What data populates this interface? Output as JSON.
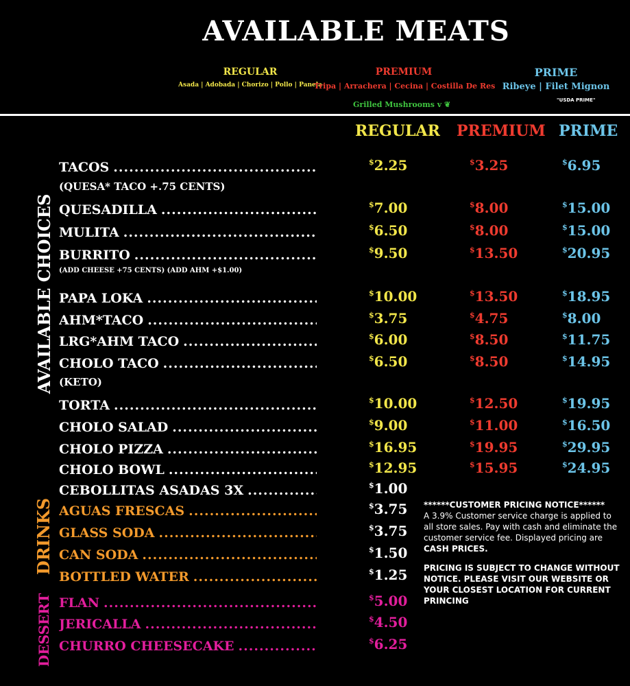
{
  "title": "AVAILABLE MEATS",
  "meats": {
    "regular": {
      "label": "REGULAR",
      "list": "Asada | Adobada | Chorizo | Pollo | Panela",
      "color": "#f2e64a"
    },
    "premium": {
      "label": "PREMIUM",
      "list": "Tripa | Arrachera | Cecina | Costilla De Res",
      "extra": "Grilled Mushrooms v",
      "color": "#ee3b2f"
    },
    "prime": {
      "label": "PRIME",
      "list": "Ribeye | Filet Mignon",
      "note": "\"USDA PRIME\"",
      "color": "#6cc4e8"
    }
  },
  "columns": {
    "regular": "REGULAR",
    "premium": "PREMIUM",
    "prime": "PRIME"
  },
  "sections": {
    "choices": "AVAILABLE CHOICES",
    "drinks": "DRINKS",
    "dessert": "DESSERT"
  },
  "items": [
    {
      "name": "TACOS",
      "regular": "2.25",
      "premium": "3.25",
      "prime": "6.95"
    },
    {
      "name": "QUESADILLA",
      "regular": "7.00",
      "premium": "8.00",
      "prime": "15.00"
    },
    {
      "name": "MULITA",
      "regular": "6.50",
      "premium": "8.00",
      "prime": "15.00"
    },
    {
      "name": "BURRITO",
      "regular": "9.50",
      "premium": "13.50",
      "prime": "20.95"
    },
    {
      "name": "PAPA LOKA",
      "regular": "10.00",
      "premium": "13.50",
      "prime": "18.95"
    },
    {
      "name": "AHM*TACO",
      "regular": "3.75",
      "premium": "4.75",
      "prime": "8.00"
    },
    {
      "name": "LRG*AHM TACO",
      "regular": "6.00",
      "premium": "8.50",
      "prime": "11.75"
    },
    {
      "name": "CHOLO TACO",
      "regular": "6.50",
      "premium": "8.50",
      "prime": "14.95"
    },
    {
      "name": "TORTA",
      "regular": "10.00",
      "premium": "12.50",
      "prime": "19.95"
    },
    {
      "name": "CHOLO SALAD",
      "regular": "9.00",
      "premium": "11.00",
      "prime": "16.50"
    },
    {
      "name": "CHOLO PIZZA",
      "regular": "16.95",
      "premium": "19.95",
      "prime": "29.95"
    },
    {
      "name": "CHOLO BOWL",
      "regular": "12.95",
      "premium": "15.95",
      "prime": "24.95"
    },
    {
      "name": "CEBOLLITAS ASADAS 3X",
      "regular": "1.00"
    }
  ],
  "notes": {
    "tacos": "(QUESA* TACO +.75 CENTS)",
    "burrito": "(ADD CHEESE +75 CENTS) (ADD AHM +$1.00)",
    "cholo_taco": "(KETO)"
  },
  "drinks": [
    {
      "name": "AGUAS FRESCAS",
      "price": "3.75"
    },
    {
      "name": "GLASS SODA",
      "price": "3.75"
    },
    {
      "name": "CAN SODA",
      "price": "1.50"
    },
    {
      "name": "BOTTLED WATER",
      "price": "1.25"
    }
  ],
  "desserts": [
    {
      "name": "FLAN",
      "price": "5.00"
    },
    {
      "name": "JERICALLA",
      "price": "4.50"
    },
    {
      "name": "CHURRO CHEESECAKE",
      "price": "6.25"
    }
  ],
  "notice": {
    "heading": "******CUSTOMER PRICING NOTICE******",
    "body": "A 3.9% Customer service charge is applied to all store sales.  Pay with cash and eliminate the customer service fee. Displayed pricing are",
    "cash": "CASH PRICES.",
    "footer": "PRICING IS SUBJECT TO CHANGE WITHOUT NOTICE.  PLEASE VISIT OUR WEBSITE OR YOUR CLOSEST LOCATION FOR  CURRENT PRINCING"
  },
  "dollar": "$"
}
